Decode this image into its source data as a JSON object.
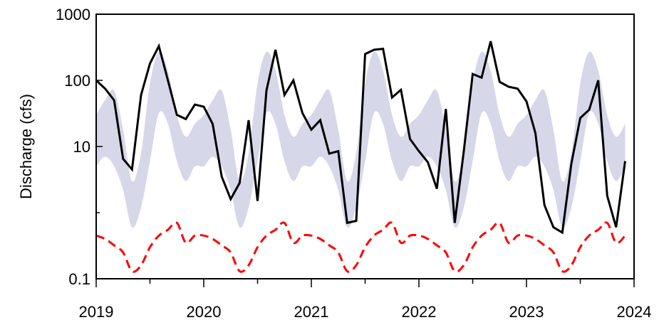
{
  "chart_data": {
    "type": "line",
    "title": "",
    "xlabel": "",
    "ylabel": "Discharge (cfs)",
    "y_scale": "log",
    "ylim": [
      0.1,
      1000
    ],
    "xlim": [
      2019,
      2024
    ],
    "y_ticks": [
      {
        "value": 0.1,
        "label": "0.1"
      },
      {
        "value": 10,
        "label": "10"
      },
      {
        "value": 100,
        "label": "100"
      },
      {
        "value": 1000,
        "label": "1000"
      }
    ],
    "x_ticks": [
      {
        "value": 2019,
        "label": "2019"
      },
      {
        "value": 2020,
        "label": "2020"
      },
      {
        "value": 2021,
        "label": "2021"
      },
      {
        "value": 2022,
        "label": "2022"
      },
      {
        "value": 2023,
        "label": "2023"
      },
      {
        "value": 2024,
        "label": "2024"
      }
    ],
    "grid": false,
    "legend": "none",
    "colors": {
      "band": "#d7d7ea",
      "observed": "#000000",
      "dashed": "#ff0000"
    },
    "series": [
      {
        "style": "band",
        "x": [
          2019.0,
          2019.083,
          2019.167,
          2019.25,
          2019.333,
          2019.417,
          2019.5,
          2019.583,
          2019.667,
          2019.75,
          2019.833,
          2019.917
        ],
        "lower": [
          5,
          7,
          5,
          2.2,
          0.6,
          1.2,
          6,
          32,
          22,
          6,
          3,
          5
        ],
        "upper": [
          30,
          50,
          70,
          18,
          3,
          8,
          90,
          270,
          140,
          30,
          14,
          22
        ],
        "repeat_years": 5
      },
      {
        "style": "solid",
        "x": [
          2019.0,
          2019.083,
          2019.167,
          2019.25,
          2019.333,
          2019.417,
          2019.5,
          2019.583,
          2019.667,
          2019.75,
          2019.833,
          2019.917,
          2020.0,
          2020.083,
          2020.167,
          2020.25,
          2020.333,
          2020.417,
          2020.5,
          2020.583,
          2020.667,
          2020.75,
          2020.833,
          2020.917,
          2021.0,
          2021.083,
          2021.167,
          2021.25,
          2021.333,
          2021.417,
          2021.5,
          2021.583,
          2021.667,
          2021.75,
          2021.833,
          2021.917,
          2022.0,
          2022.083,
          2022.167,
          2022.25,
          2022.333,
          2022.417,
          2022.5,
          2022.583,
          2022.667,
          2022.75,
          2022.833,
          2022.917,
          2023.0,
          2023.083,
          2023.167,
          2023.25,
          2023.333,
          2023.417,
          2023.5,
          2023.583,
          2023.667,
          2023.75,
          2023.833,
          2023.917
        ],
        "y": [
          100,
          75,
          50,
          6.5,
          4.5,
          60,
          180,
          330,
          100,
          30,
          26,
          43,
          40,
          22,
          3.5,
          1.6,
          2.8,
          25,
          1.5,
          70,
          290,
          60,
          100,
          32,
          18,
          25,
          7.8,
          8.5,
          0.7,
          0.75,
          250,
          290,
          300,
          55,
          72,
          13,
          8.5,
          5.8,
          2.3,
          37,
          0.7,
          8.5,
          125,
          110,
          390,
          95,
          80,
          75,
          48,
          16,
          1.3,
          0.6,
          0.5,
          5.5,
          27,
          36,
          100,
          1.8,
          0.6,
          6
        ]
      },
      {
        "style": "dashed",
        "x": [
          2019.0,
          2019.083,
          2019.167,
          2019.25,
          2019.333,
          2019.417,
          2019.5,
          2019.583,
          2019.667,
          2019.75,
          2019.833,
          2019.917
        ],
        "y": [
          0.45,
          0.4,
          0.32,
          0.25,
          0.13,
          0.16,
          0.3,
          0.45,
          0.55,
          0.7,
          0.35,
          0.45
        ],
        "repeat_years": 5
      }
    ]
  }
}
